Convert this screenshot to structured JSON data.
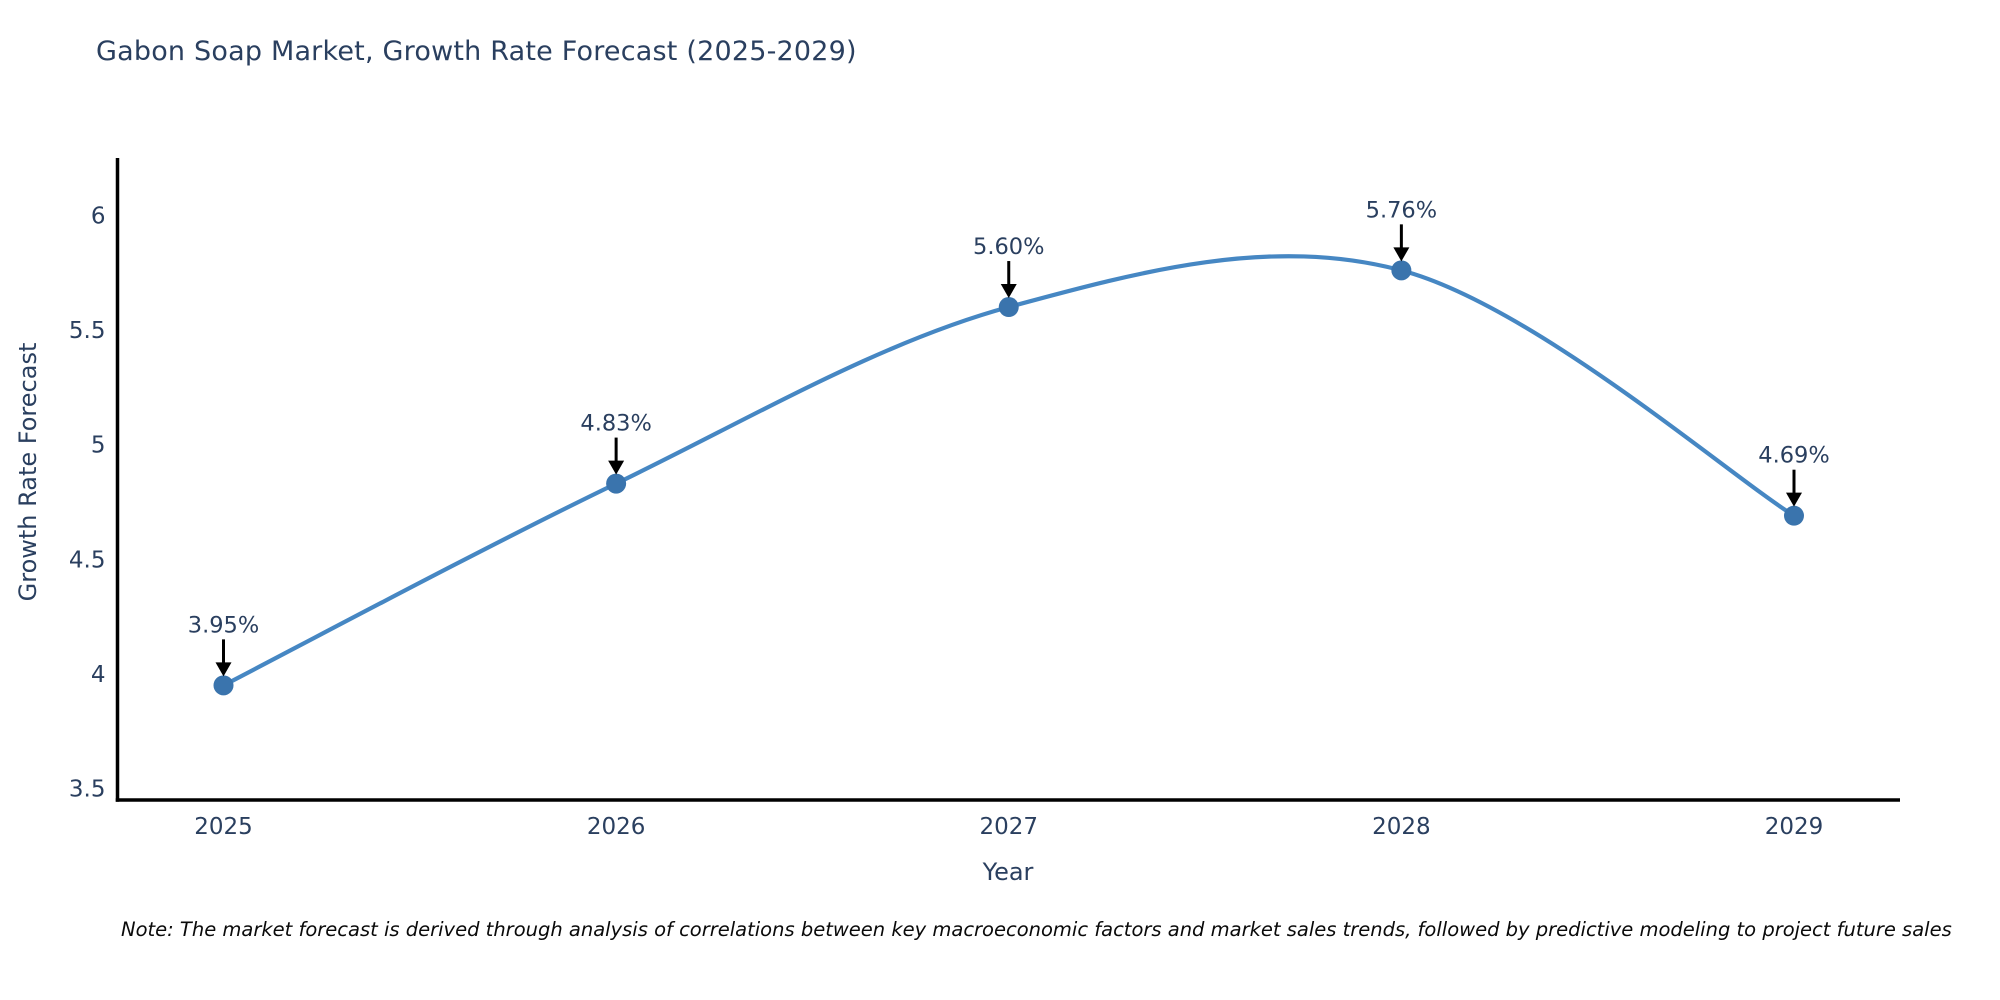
{
  "title": "Gabon Soap Market, Growth Rate Forecast (2025-2029)",
  "note": "Note: The market forecast is derived through analysis of correlations between key macroeconomic factors and market sales trends, followed by predictive modeling to project future sales",
  "chart_data": {
    "type": "line",
    "title": "Gabon Soap Market, Growth Rate Forecast (2025-2029)",
    "xlabel": "Year",
    "ylabel": "Growth Rate Forecast",
    "x": [
      2025,
      2026,
      2027,
      2028,
      2029
    ],
    "values": [
      3.95,
      4.83,
      5.6,
      5.76,
      4.69
    ],
    "point_labels": [
      "3.95%",
      "4.83%",
      "5.60%",
      "5.76%",
      "4.69%"
    ],
    "xtick_labels": [
      "2025",
      "2026",
      "2027",
      "2028",
      "2029"
    ],
    "ytick_values": [
      6,
      5.5,
      5,
      4.5,
      4,
      3.5
    ],
    "ytick_labels": [
      "6",
      "5.5",
      "5",
      "4.5",
      "4",
      "3.5"
    ],
    "xlim": [
      2024.73,
      2029.27
    ],
    "ylim": [
      3.45,
      6.25
    ],
    "curve": "smooth",
    "grid": false,
    "legend": "none",
    "colors": {
      "line": "#4687c3",
      "marker": "#3a74ad",
      "axis": "#000000",
      "text": "#2a3f5f",
      "annotation_arrow": "#000000"
    }
  }
}
